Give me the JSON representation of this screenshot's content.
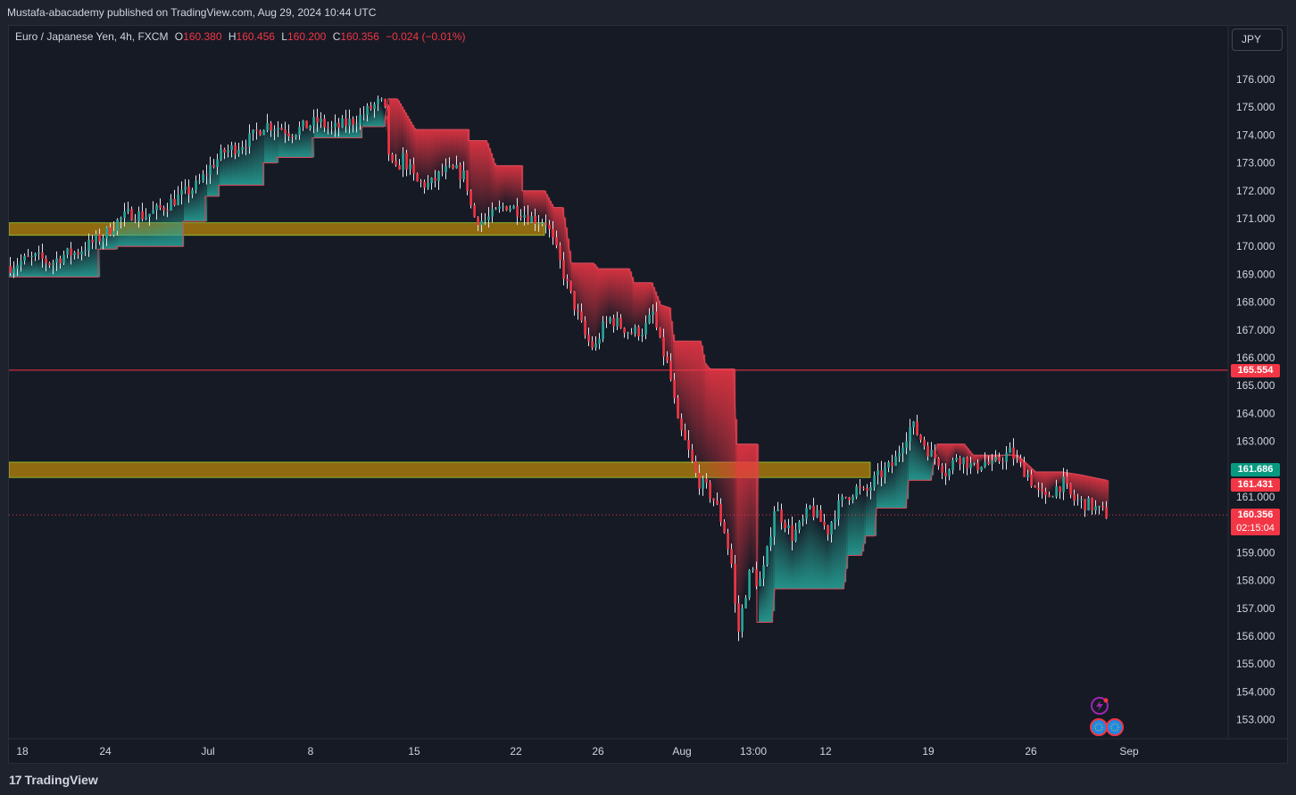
{
  "header": {
    "publisher": "Mustafa-abacademy published on TradingView.com, Aug 29, 2024 10:44 UTC"
  },
  "legend": {
    "symbol": "Euro / Japanese Yen, 4h, FXCM",
    "o_label": "O",
    "o": "160.380",
    "h_label": "H",
    "h": "160.456",
    "l_label": "L",
    "l": "160.200",
    "c_label": "C",
    "c": "160.356",
    "change": "−0.024 (−0.01%)"
  },
  "currency_button": "JPY",
  "price_tags": {
    "resistance": "165.554",
    "upper_band": "161.686",
    "lower_band": "161.431",
    "last": "160.356",
    "countdown": "02:15:04"
  },
  "footer": {
    "brand": "TradingView"
  },
  "colors": {
    "up": "#26a69a",
    "down": "#f23645",
    "zone": "#b8860b",
    "background": "#161a25"
  },
  "chart_data": {
    "type": "candlestick",
    "symbol": "EURJPY",
    "ylim": [
      152.4,
      177.3
    ],
    "y_ticks": [
      "153.000",
      "154.000",
      "155.000",
      "156.000",
      "157.000",
      "158.000",
      "159.000",
      "161.000",
      "163.000",
      "164.000",
      "165.000",
      "166.000",
      "167.000",
      "168.000",
      "169.000",
      "170.000",
      "171.000",
      "172.000",
      "173.000",
      "174.000",
      "175.000",
      "176.000"
    ],
    "x_ticks": [
      "18",
      "24",
      "Jul",
      "8",
      "15",
      "22",
      "26",
      "Aug",
      "13:00",
      "12",
      "19",
      "26",
      "Sep"
    ],
    "close_path": [
      [
        0,
        169.3
      ],
      [
        15,
        169.5
      ],
      [
        30,
        169.6
      ],
      [
        45,
        169.4
      ],
      [
        60,
        169.7
      ],
      [
        75,
        169.8
      ],
      [
        90,
        170.1
      ],
      [
        105,
        170.4
      ],
      [
        120,
        170.9
      ],
      [
        135,
        171.2
      ],
      [
        150,
        171.1
      ],
      [
        165,
        171.3
      ],
      [
        180,
        171.6
      ],
      [
        195,
        171.9
      ],
      [
        210,
        172.2
      ],
      [
        225,
        172.9
      ],
      [
        240,
        173.4
      ],
      [
        255,
        173.6
      ],
      [
        270,
        173.9
      ],
      [
        285,
        174.4
      ],
      [
        300,
        174.3
      ],
      [
        315,
        174.1
      ],
      [
        330,
        174.3
      ],
      [
        345,
        174.5
      ],
      [
        360,
        174.2
      ],
      [
        375,
        174.4
      ],
      [
        390,
        174.6
      ],
      [
        405,
        175.0
      ],
      [
        415,
        175.2
      ],
      [
        420,
        174.8
      ],
      [
        425,
        173.0
      ],
      [
        432,
        172.7
      ],
      [
        440,
        173.2
      ],
      [
        455,
        172.3
      ],
      [
        470,
        172.2
      ],
      [
        485,
        172.7
      ],
      [
        500,
        172.7
      ],
      [
        510,
        172.5
      ],
      [
        518,
        171.1
      ],
      [
        530,
        170.9
      ],
      [
        540,
        171.1
      ],
      [
        555,
        171.5
      ],
      [
        570,
        171.3
      ],
      [
        585,
        171.0
      ],
      [
        600,
        170.9
      ],
      [
        612,
        169.8
      ],
      [
        625,
        168.5
      ],
      [
        635,
        167.6
      ],
      [
        645,
        166.7
      ],
      [
        655,
        166.3
      ],
      [
        662,
        167.0
      ],
      [
        672,
        167.4
      ],
      [
        682,
        167.2
      ],
      [
        695,
        166.9
      ],
      [
        710,
        167.0
      ],
      [
        720,
        167.6
      ],
      [
        728,
        166.5
      ],
      [
        738,
        165.6
      ],
      [
        748,
        163.6
      ],
      [
        758,
        162.8
      ],
      [
        770,
        161.6
      ],
      [
        780,
        161.3
      ],
      [
        790,
        160.8
      ],
      [
        800,
        159.8
      ],
      [
        808,
        158.6
      ],
      [
        815,
        156.0
      ],
      [
        822,
        157.3
      ],
      [
        830,
        158.5
      ],
      [
        838,
        157.8
      ],
      [
        846,
        158.6
      ],
      [
        856,
        160.6
      ],
      [
        866,
        160.2
      ],
      [
        876,
        159.6
      ],
      [
        886,
        160.0
      ],
      [
        896,
        160.6
      ],
      [
        906,
        160.2
      ],
      [
        916,
        159.8
      ],
      [
        926,
        160.6
      ],
      [
        936,
        161.0
      ],
      [
        948,
        161.3
      ],
      [
        958,
        161.1
      ],
      [
        968,
        161.6
      ],
      [
        978,
        161.9
      ],
      [
        990,
        162.2
      ],
      [
        1000,
        163.0
      ],
      [
        1010,
        163.6
      ],
      [
        1020,
        163.1
      ],
      [
        1030,
        162.6
      ],
      [
        1040,
        162.3
      ],
      [
        1050,
        161.8
      ],
      [
        1060,
        162.5
      ],
      [
        1070,
        162.3
      ],
      [
        1080,
        162.0
      ],
      [
        1090,
        162.3
      ],
      [
        1100,
        162.1
      ],
      [
        1110,
        162.4
      ],
      [
        1120,
        162.6
      ],
      [
        1130,
        162.2
      ],
      [
        1140,
        161.8
      ],
      [
        1150,
        161.2
      ],
      [
        1160,
        160.9
      ],
      [
        1170,
        161.3
      ],
      [
        1180,
        161.5
      ],
      [
        1190,
        160.9
      ],
      [
        1200,
        160.8
      ],
      [
        1210,
        160.7
      ],
      [
        1220,
        160.5
      ],
      [
        1230,
        160.356
      ]
    ],
    "trail_stop": [
      [
        0,
        168.9
      ],
      [
        100,
        168.9
      ],
      [
        100,
        169.9
      ],
      [
        120,
        169.9
      ],
      [
        120,
        170.0
      ],
      [
        195,
        170.0
      ],
      [
        195,
        170.9
      ],
      [
        220,
        170.9
      ],
      [
        220,
        171.8
      ],
      [
        235,
        171.8
      ],
      [
        235,
        172.2
      ],
      [
        285,
        172.2
      ],
      [
        285,
        173.0
      ],
      [
        300,
        173.0
      ],
      [
        300,
        173.2
      ],
      [
        340,
        173.2
      ],
      [
        340,
        173.9
      ],
      [
        395,
        173.9
      ],
      [
        395,
        174.3
      ],
      [
        420,
        174.3
      ],
      [
        425,
        175.3
      ],
      [
        435,
        175.3
      ],
      [
        455,
        174.2
      ],
      [
        515,
        174.2
      ],
      [
        515,
        173.8
      ],
      [
        535,
        173.8
      ],
      [
        545,
        172.9
      ],
      [
        575,
        172.9
      ],
      [
        575,
        172.0
      ],
      [
        600,
        172.0
      ],
      [
        610,
        171.4
      ],
      [
        620,
        171.4
      ],
      [
        625,
        170.5
      ],
      [
        630,
        169.4
      ],
      [
        655,
        169.4
      ],
      [
        660,
        169.2
      ],
      [
        695,
        169.2
      ],
      [
        700,
        168.7
      ],
      [
        720,
        168.7
      ],
      [
        730,
        167.9
      ],
      [
        740,
        167.8
      ],
      [
        745,
        166.6
      ],
      [
        775,
        166.6
      ],
      [
        780,
        165.8
      ],
      [
        785,
        165.6
      ],
      [
        812,
        165.6
      ],
      [
        815,
        162.9
      ],
      [
        838,
        162.9
      ],
      [
        838,
        156.5
      ],
      [
        855,
        156.5
      ],
      [
        858,
        157.7
      ],
      [
        935,
        157.7
      ],
      [
        940,
        158.9
      ],
      [
        955,
        158.9
      ],
      [
        960,
        159.6
      ],
      [
        970,
        159.6
      ],
      [
        972,
        160.6
      ],
      [
        1005,
        160.6
      ],
      [
        1008,
        161.6
      ],
      [
        1030,
        161.6
      ],
      [
        1033,
        161.6
      ],
      [
        1040,
        162.9
      ],
      [
        1070,
        162.9
      ],
      [
        1080,
        162.5
      ],
      [
        1130,
        162.5
      ],
      [
        1140,
        162.2
      ],
      [
        1150,
        161.9
      ],
      [
        1180,
        161.9
      ],
      [
        1200,
        161.8
      ],
      [
        1230,
        161.6
      ]
    ],
    "levels": [
      {
        "name": "resistance",
        "price": 165.554,
        "style": "solid"
      },
      {
        "name": "last_price",
        "price": 160.356,
        "style": "dotted"
      }
    ],
    "zones": [
      {
        "from": 170.4,
        "to": 170.85
      },
      {
        "from": 161.7,
        "to": 162.25
      }
    ]
  }
}
